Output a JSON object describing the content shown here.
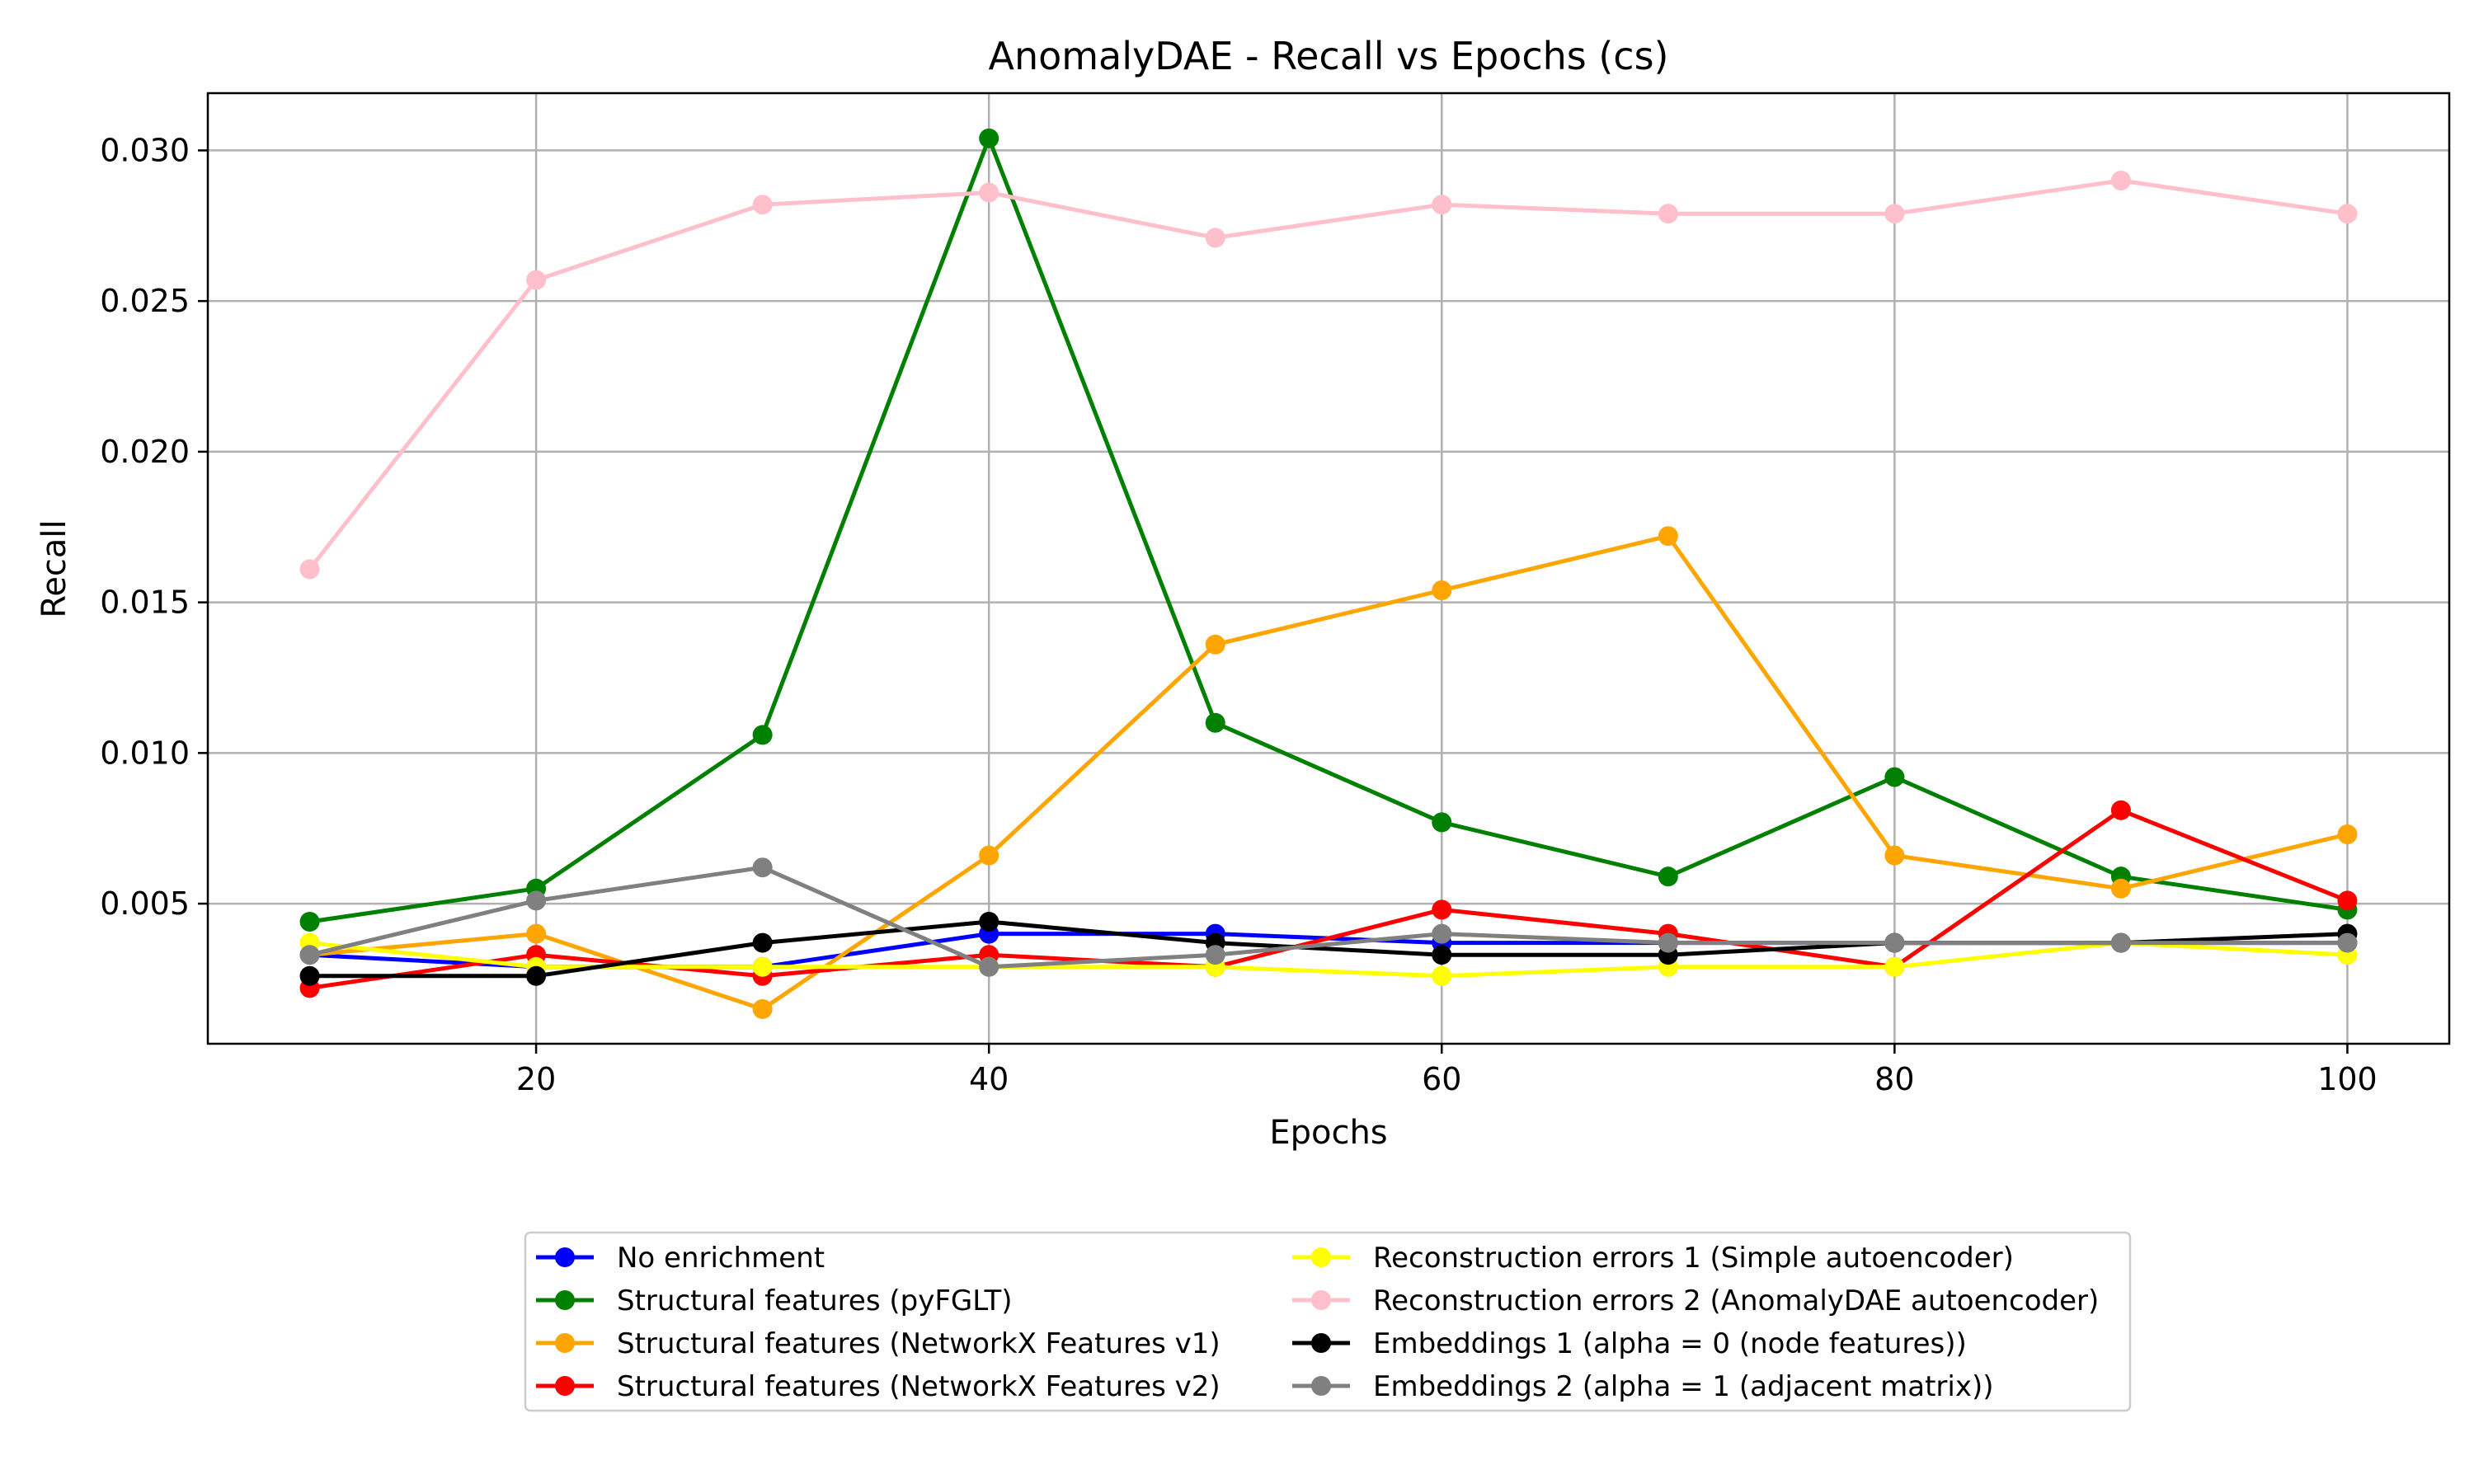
{
  "chart_data": {
    "type": "line",
    "title": "AnomalyDAE - Recall vs Epochs (cs)",
    "xlabel": "Epochs",
    "ylabel": "Recall",
    "xlim": [
      5.5,
      104.5
    ],
    "ylim": [
      0.00035,
      0.0319
    ],
    "xticks": [
      20,
      40,
      60,
      80,
      100
    ],
    "xtick_labels": [
      "20",
      "40",
      "60",
      "80",
      "100"
    ],
    "yticks": [
      0.005,
      0.01,
      0.015,
      0.02,
      0.025,
      0.03
    ],
    "ytick_labels": [
      "0.005",
      "0.010",
      "0.015",
      "0.020",
      "0.025",
      "0.030"
    ],
    "grid": true,
    "legend_position": "below",
    "x": [
      10,
      20,
      30,
      40,
      50,
      60,
      70,
      80,
      90,
      100
    ],
    "series": [
      {
        "name": "No enrichment",
        "color": "#0000ff",
        "values": [
          0.0033,
          0.0029,
          0.0029,
          0.004,
          0.004,
          0.0037,
          0.0037,
          0.0037,
          0.0037,
          0.0037
        ]
      },
      {
        "name": "Structural features (pyFGLT)",
        "color": "#008000",
        "values": [
          0.0044,
          0.0055,
          0.0106,
          0.0304,
          0.011,
          0.0077,
          0.0059,
          0.0092,
          0.0059,
          0.0048
        ]
      },
      {
        "name": "Structural features (NetworkX Features v1)",
        "color": "#ffa500",
        "values": [
          0.0033,
          0.004,
          0.0015,
          0.0066,
          0.0136,
          0.0154,
          0.0172,
          0.0066,
          0.0055,
          0.0073
        ]
      },
      {
        "name": "Structural features (NetworkX Features v2)",
        "color": "#ff0000",
        "values": [
          0.0022,
          0.0033,
          0.0026,
          0.0033,
          0.0029,
          0.0048,
          0.004,
          0.0029,
          0.0081,
          0.0051
        ]
      },
      {
        "name": "Reconstruction errors 1 (Simple autoencoder)",
        "color": "#ffff00",
        "values": [
          0.0037,
          0.0029,
          0.0029,
          0.0029,
          0.0029,
          0.0026,
          0.0029,
          0.0029,
          0.0037,
          0.0033
        ]
      },
      {
        "name": "Reconstruction errors 2 (AnomalyDAE autoencoder)",
        "color": "#ffc0cb",
        "values": [
          0.0161,
          0.0257,
          0.0282,
          0.0286,
          0.0271,
          0.0282,
          0.0279,
          0.0279,
          0.029,
          0.0279
        ]
      },
      {
        "name": "Embeddings 1 (alpha = 0 (node features))",
        "color": "#000000",
        "values": [
          0.0026,
          0.0026,
          0.0037,
          0.0044,
          0.0037,
          0.0033,
          0.0033,
          0.0037,
          0.0037,
          0.004
        ]
      },
      {
        "name": "Embeddings 2 (alpha = 1 (adjacent matrix))",
        "color": "#808080",
        "values": [
          0.0033,
          0.0051,
          0.0062,
          0.0029,
          0.0033,
          0.004,
          0.0037,
          0.0037,
          0.0037,
          0.0037
        ]
      }
    ]
  }
}
